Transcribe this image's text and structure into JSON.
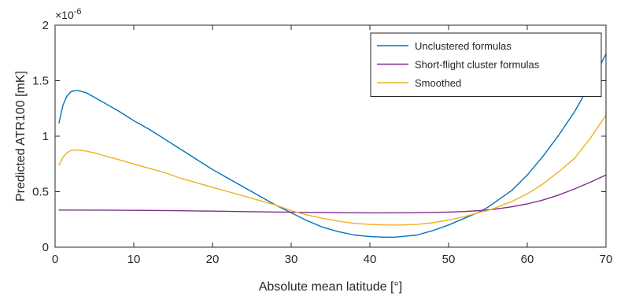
{
  "chart_data": {
    "type": "line",
    "xlabel": "Absolute mean latitude [°]",
    "ylabel": "Predicted ATR100 [mK]",
    "y_exponent_label": "×10",
    "y_exponent_power": "-6",
    "xlim": [
      0,
      70
    ],
    "ylim": [
      0,
      2
    ],
    "x_ticks": [
      0,
      10,
      20,
      30,
      40,
      50,
      60,
      70
    ],
    "x_tick_labels": [
      "0",
      "10",
      "20",
      "30",
      "40",
      "50",
      "60",
      "70"
    ],
    "y_ticks": [
      0,
      0.5,
      1,
      1.5,
      2
    ],
    "y_tick_labels": [
      "0",
      "0.5",
      "1",
      "1.5",
      "2"
    ],
    "grid": false,
    "box": true,
    "legend_position": "top-right",
    "series": [
      {
        "name": "Unclustered formulas",
        "color": "#0072BD",
        "x": [
          0.5,
          1,
          1.5,
          2,
          2.5,
          3,
          4,
          5,
          6,
          8,
          10,
          12,
          14,
          16,
          18,
          20,
          22,
          24,
          26,
          28,
          30,
          32,
          34,
          36,
          38,
          40,
          42,
          43,
          44,
          46,
          48,
          50,
          52,
          54,
          55,
          56,
          58,
          60,
          62,
          64,
          66,
          68,
          70
        ],
        "y": [
          1.12,
          1.28,
          1.36,
          1.4,
          1.41,
          1.41,
          1.39,
          1.35,
          1.31,
          1.23,
          1.14,
          1.06,
          0.97,
          0.88,
          0.79,
          0.7,
          0.62,
          0.54,
          0.46,
          0.38,
          0.31,
          0.24,
          0.18,
          0.14,
          0.11,
          0.095,
          0.09,
          0.09,
          0.095,
          0.11,
          0.15,
          0.2,
          0.26,
          0.32,
          0.36,
          0.41,
          0.51,
          0.65,
          0.82,
          1.01,
          1.22,
          1.47,
          1.74
        ]
      },
      {
        "name": "Short-flight cluster formulas",
        "color": "#7E2F8E",
        "x": [
          0.5,
          5,
          10,
          15,
          20,
          25,
          30,
          35,
          40,
          45,
          50,
          52,
          54,
          55,
          56,
          58,
          60,
          62,
          64,
          66,
          68,
          70
        ],
        "y": [
          0.335,
          0.334,
          0.332,
          0.329,
          0.325,
          0.32,
          0.315,
          0.311,
          0.309,
          0.31,
          0.316,
          0.321,
          0.33,
          0.336,
          0.344,
          0.364,
          0.39,
          0.425,
          0.47,
          0.525,
          0.585,
          0.65
        ]
      },
      {
        "name": "Smoothed",
        "color": "#EDB120",
        "x": [
          0.5,
          1,
          1.5,
          2,
          2.5,
          3,
          4,
          5,
          6,
          8,
          10,
          12,
          14,
          16,
          18,
          20,
          22,
          24,
          26,
          28,
          30,
          32,
          34,
          36,
          38,
          40,
          42,
          44,
          46,
          48,
          50,
          52,
          54,
          55,
          56,
          58,
          60,
          62,
          64,
          66,
          68,
          70
        ],
        "y": [
          0.74,
          0.81,
          0.85,
          0.87,
          0.875,
          0.875,
          0.865,
          0.85,
          0.83,
          0.79,
          0.75,
          0.71,
          0.67,
          0.62,
          0.58,
          0.54,
          0.5,
          0.46,
          0.42,
          0.38,
          0.33,
          0.29,
          0.26,
          0.235,
          0.215,
          0.205,
          0.2,
          0.2,
          0.205,
          0.22,
          0.245,
          0.275,
          0.315,
          0.33,
          0.355,
          0.41,
          0.48,
          0.57,
          0.68,
          0.8,
          0.98,
          1.19
        ]
      }
    ]
  }
}
